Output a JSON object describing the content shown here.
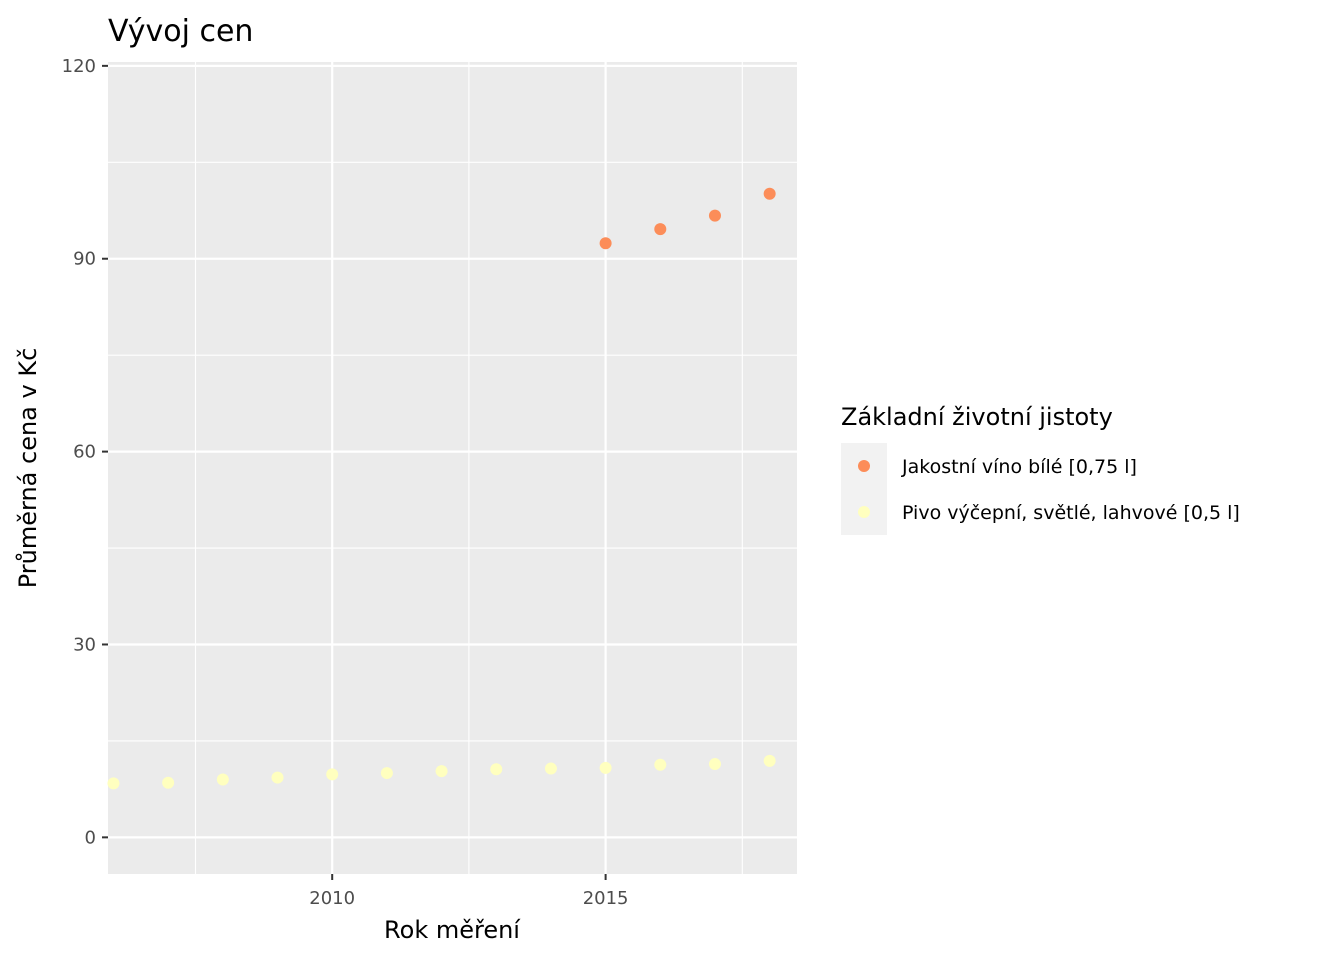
{
  "chart_data": {
    "type": "scatter",
    "title": "Vývoj cen",
    "xlabel": "Rok měření",
    "ylabel": "Průměrná cena v Kč",
    "xlim": [
      2005.9,
      2018.5
    ],
    "ylim": [
      -5.7,
      120.6
    ],
    "x_ticks": [
      2010,
      2015
    ],
    "y_ticks": [
      0,
      30,
      60,
      90,
      120
    ],
    "x_tick_labels": [
      "2010",
      "2015"
    ],
    "y_tick_labels": [
      "0",
      "30",
      "60",
      "90",
      "120"
    ],
    "grid": true,
    "legend": {
      "title": "Základní životní jistoty",
      "placement": "right"
    },
    "series": [
      {
        "name": "Jakostní víno bílé [0,75 l]",
        "color": "#fc8d59",
        "x": [
          2015,
          2016,
          2017,
          2018
        ],
        "y": [
          92.4,
          94.6,
          96.7,
          100.1
        ]
      },
      {
        "name": "Pivo výčepní, světlé, lahvové [0,5 l]",
        "color": "#ffffbf",
        "x": [
          2006,
          2007,
          2008,
          2009,
          2010,
          2011,
          2012,
          2013,
          2014,
          2015,
          2016,
          2017,
          2018
        ],
        "y": [
          8.4,
          8.5,
          9.0,
          9.3,
          9.8,
          10.0,
          10.3,
          10.6,
          10.7,
          10.8,
          11.3,
          11.4,
          11.9
        ]
      }
    ]
  }
}
